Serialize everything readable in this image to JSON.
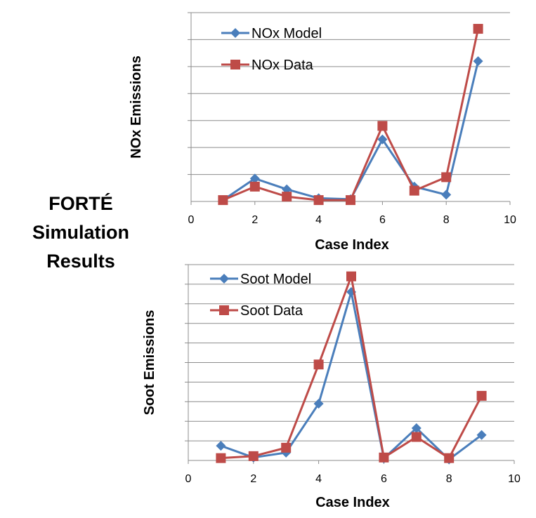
{
  "side_title": [
    "FORTÉ",
    "Simulation",
    "Results"
  ],
  "chart_data": [
    {
      "type": "line",
      "title": "",
      "xlabel": "Case Index",
      "ylabel": "NOx Emissions",
      "xlim": [
        0,
        10
      ],
      "xticks": [
        0,
        2,
        4,
        6,
        8,
        10
      ],
      "ylim": [
        0,
        7
      ],
      "ygrid_step": 1,
      "legend": "top-left",
      "series": [
        {
          "name": "NOx Model",
          "marker": "diamond",
          "color": "#4a7ebb",
          "x": [
            1,
            2,
            3,
            4,
            5,
            6,
            7,
            8,
            9
          ],
          "y": [
            0.05,
            0.85,
            0.45,
            0.12,
            0.08,
            2.3,
            0.55,
            0.25,
            5.2
          ]
        },
        {
          "name": "NOx Data",
          "marker": "square",
          "color": "#be4b48",
          "x": [
            1,
            2,
            3,
            4,
            5,
            6,
            7,
            8,
            9
          ],
          "y": [
            0.05,
            0.55,
            0.18,
            0.05,
            0.05,
            2.8,
            0.4,
            0.9,
            6.4
          ]
        }
      ]
    },
    {
      "type": "line",
      "title": "",
      "xlabel": "Case Index",
      "ylabel": "Soot Emissions",
      "xlim": [
        0,
        10
      ],
      "xticks": [
        0,
        2,
        4,
        6,
        8,
        10
      ],
      "ylim": [
        0,
        10
      ],
      "ygrid_step": 1,
      "legend": "top-left",
      "series": [
        {
          "name": "Soot Model",
          "marker": "diamond",
          "color": "#4a7ebb",
          "x": [
            1,
            2,
            3,
            4,
            5,
            6,
            7,
            8,
            9
          ],
          "y": [
            0.75,
            0.15,
            0.4,
            2.9,
            8.6,
            0.1,
            1.65,
            0.05,
            1.3
          ]
        },
        {
          "name": "Soot Data",
          "marker": "square",
          "color": "#be4b48",
          "x": [
            1,
            2,
            3,
            4,
            5,
            6,
            7,
            8,
            9
          ],
          "y": [
            0.12,
            0.22,
            0.65,
            4.9,
            9.4,
            0.15,
            1.2,
            0.12,
            3.3
          ]
        }
      ]
    }
  ]
}
